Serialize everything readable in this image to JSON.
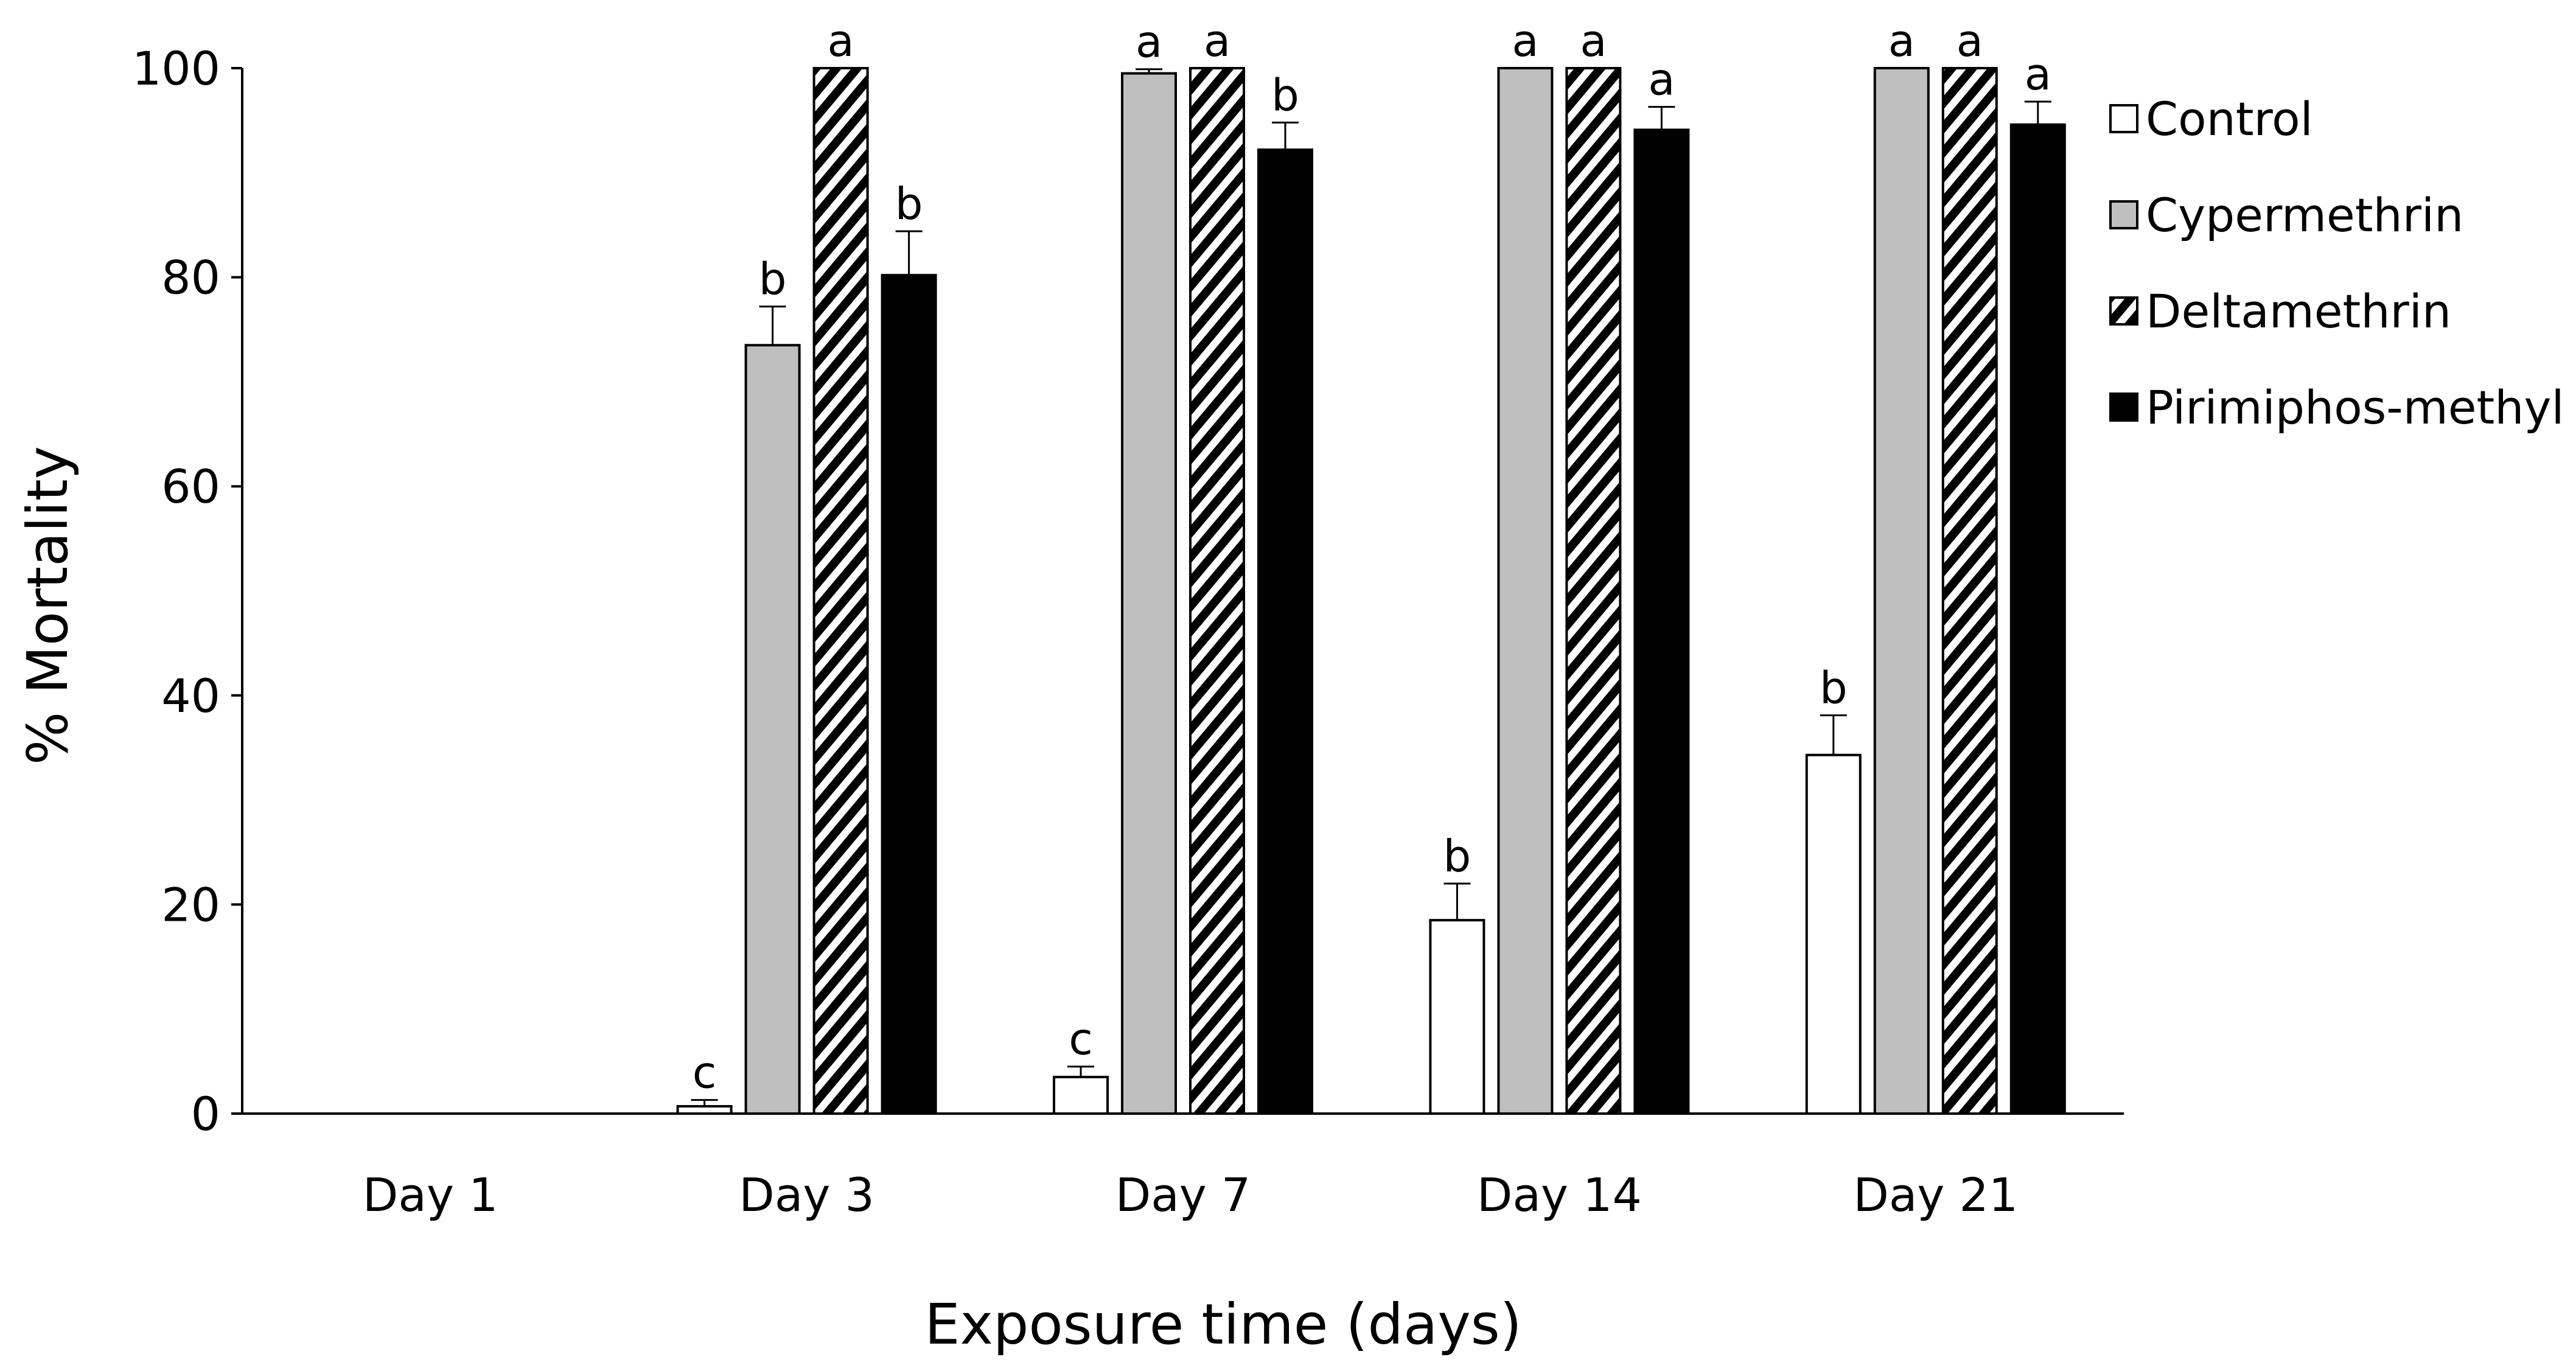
{
  "chart_data": {
    "type": "bar",
    "title": "",
    "xlabel": "Exposure time (days)",
    "ylabel": "% Mortality",
    "ylim": [
      0,
      100
    ],
    "yticks": [
      0,
      20,
      40,
      60,
      80,
      100
    ],
    "grid": false,
    "legend_position": "right",
    "categories": [
      "Day 1",
      "Day 3",
      "Day 7",
      "Day 14",
      "Day 21"
    ],
    "series": [
      {
        "name": "Control",
        "pattern": "open",
        "fill": "#ffffff",
        "values": [
          null,
          0.7,
          3.5,
          18.5,
          34.3
        ],
        "errors": [
          null,
          0.6,
          1.0,
          3.5,
          3.8
        ],
        "letters": [
          null,
          "c",
          "c",
          "b",
          "b"
        ]
      },
      {
        "name": "Cypermethrin",
        "pattern": "gray",
        "fill": "#bfbfbf",
        "values": [
          null,
          73.5,
          99.5,
          100,
          100
        ],
        "errors": [
          null,
          3.7,
          0.4,
          null,
          null
        ],
        "letters": [
          null,
          "b",
          "a",
          "a",
          "a"
        ]
      },
      {
        "name": "Deltamethrin",
        "pattern": "diagonal-stripes",
        "fill": "#000000",
        "values": [
          null,
          100,
          100,
          100,
          100
        ],
        "errors": [
          null,
          null,
          null,
          null,
          null
        ],
        "letters": [
          null,
          "a",
          "a",
          "a",
          "a"
        ]
      },
      {
        "name": "Pirimiphos-methyl",
        "pattern": "solid",
        "fill": "#000000",
        "values": [
          null,
          80.2,
          92.2,
          94.1,
          94.6
        ],
        "errors": [
          null,
          4.2,
          2.6,
          2.2,
          2.2
        ],
        "letters": [
          null,
          "b",
          "b",
          "a",
          "a"
        ]
      }
    ]
  }
}
